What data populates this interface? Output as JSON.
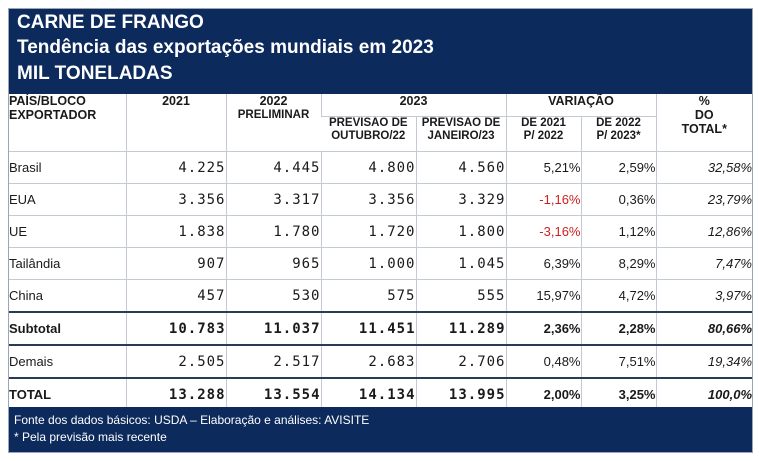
{
  "title": {
    "line1": "CARNE DE FRANGO",
    "line2": "Tendência das exportações mundiais em 2023",
    "line3": "MIL TONELADAS"
  },
  "columns": {
    "pais": [
      "PAÍS/BLOCO",
      "EXPORTADOR"
    ],
    "y2021": "2021",
    "y2022": [
      "2022",
      "PRELIMINAR"
    ],
    "y2023": "2023",
    "prev_out": [
      "PREVISÃO DE",
      "OUTUBRO/22"
    ],
    "prev_jan": [
      "PREVISÃO DE",
      "JANEIRO/23"
    ],
    "variacao": "VARIAÇÃO",
    "var_2021": [
      "DE 2021",
      "P/  2022"
    ],
    "var_2022": [
      "DE 2022",
      "P/  2023*"
    ],
    "pct_total": [
      "%",
      "DO",
      "TOTAL*"
    ]
  },
  "rows": [
    {
      "name": "Brasil",
      "y2021": "4.225",
      "y2022": "4.445",
      "prev_out": "4.800",
      "prev_jan": "4.560",
      "var_2021": "5,21%",
      "var_2022": "2,59%",
      "pct": "32,58%",
      "neg": false
    },
    {
      "name": "EUA",
      "y2021": "3.356",
      "y2022": "3.317",
      "prev_out": "3.356",
      "prev_jan": "3.329",
      "var_2021": "-1,16%",
      "var_2022": "0,36%",
      "pct": "23,79%",
      "neg": true
    },
    {
      "name": "UE",
      "y2021": "1.838",
      "y2022": "1.780",
      "prev_out": "1.720",
      "prev_jan": "1.800",
      "var_2021": "-3,16%",
      "var_2022": "1,12%",
      "pct": "12,86%",
      "neg": true
    },
    {
      "name": "Tailândia",
      "y2021": "907",
      "y2022": "965",
      "prev_out": "1.000",
      "prev_jan": "1.045",
      "var_2021": "6,39%",
      "var_2022": "8,29%",
      "pct": "7,47%",
      "neg": false
    },
    {
      "name": "China",
      "y2021": "457",
      "y2022": "530",
      "prev_out": "575",
      "prev_jan": "555",
      "var_2021": "15,97%",
      "var_2022": "4,72%",
      "pct": "3,97%",
      "neg": false
    }
  ],
  "subtotal": {
    "name": "Subtotal",
    "y2021": "10.783",
    "y2022": "11.037",
    "prev_out": "11.451",
    "prev_jan": "11.289",
    "var_2021": "2,36%",
    "var_2022": "2,28%",
    "pct": "80,66%"
  },
  "demais": {
    "name": "Demais",
    "y2021": "2.505",
    "y2022": "2.517",
    "prev_out": "2.683",
    "prev_jan": "2.706",
    "var_2021": "0,48%",
    "var_2022": "7,51%",
    "pct": "19,34%"
  },
  "total": {
    "name": "TOTAL",
    "y2021": "13.288",
    "y2022": "13.554",
    "prev_out": "14.134",
    "prev_jan": "13.995",
    "var_2021": "2,00%",
    "var_2022": "3,25%",
    "pct": "100,0%"
  },
  "footer": {
    "source": "Fonte dos dados básicos: USDA – Elaboração e análises: AVISITE",
    "note": "* Pela previsão mais recente"
  },
  "colors": {
    "header_bg": "#0d2a5c",
    "negative": "#d02020"
  }
}
